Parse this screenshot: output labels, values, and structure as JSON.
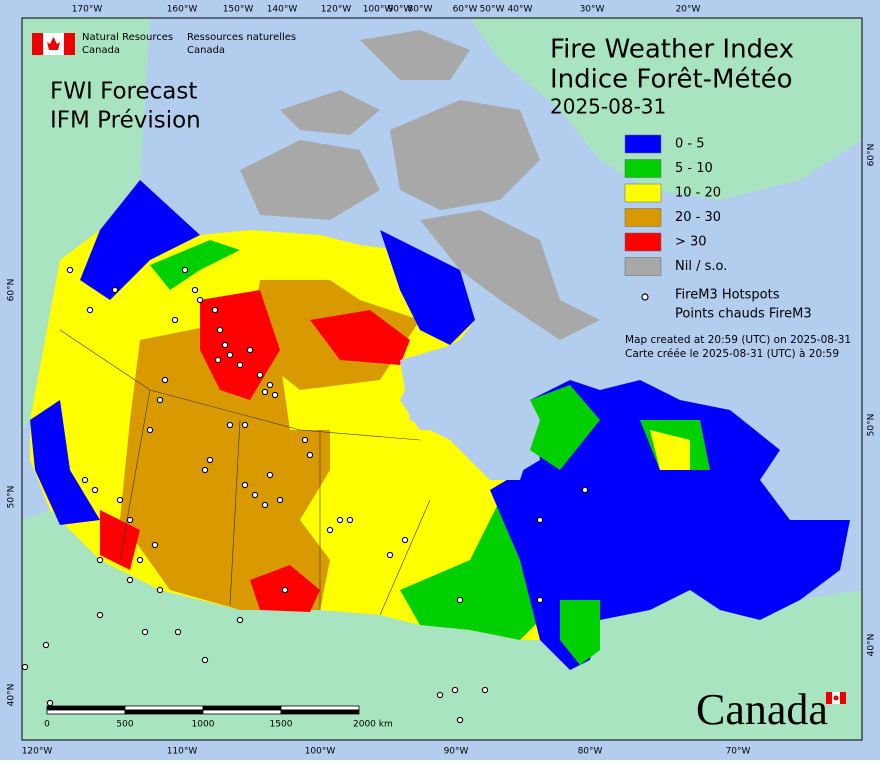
{
  "agency": {
    "en": [
      "Natural Resources",
      "Canada"
    ],
    "fr": [
      "Ressources naturelles",
      "Canada"
    ]
  },
  "product": [
    "FWI Forecast",
    "IFM Prévision"
  ],
  "title": [
    "Fire Weather Index",
    "Indice Forêt-Météo"
  ],
  "date": "2025-08-31",
  "legend": [
    {
      "label": "0 - 5",
      "color": "#0000ff"
    },
    {
      "label": "5 - 10",
      "color": "#00d000"
    },
    {
      "label": "10 - 20",
      "color": "#ffff00"
    },
    {
      "label": "20 - 30",
      "color": "#d89a00"
    },
    {
      "label": "> 30",
      "color": "#ff0000"
    },
    {
      "label": "Nil / s.o.",
      "color": "#a8a8a8"
    }
  ],
  "hotspots": [
    "FireM3 Hotspots",
    "Points chauds FireM3"
  ],
  "notes": [
    "Map created at 20:59 (UTC) on 2025-08-31",
    "Carte créée le 2025-08-31 (UTC) à 20:59"
  ],
  "scale": [
    "0",
    "500",
    "1000",
    "1500",
    "2000 km"
  ],
  "graticule": {
    "top": [
      "170°W",
      "160°W",
      "150°W",
      "140°W",
      "120°W",
      "100°W",
      "90°W",
      "80°W",
      "60°W",
      "50°W",
      "40°W",
      "30°W",
      "20°W"
    ],
    "bottom": [
      "120°W",
      "110°W",
      "100°W",
      "90°W",
      "80°W",
      "70°W"
    ],
    "left": [
      "60°N",
      "50°N",
      "40°N"
    ],
    "right": [
      "60°N",
      "50°N",
      "40°N"
    ]
  },
  "wordmark": "Canada"
}
